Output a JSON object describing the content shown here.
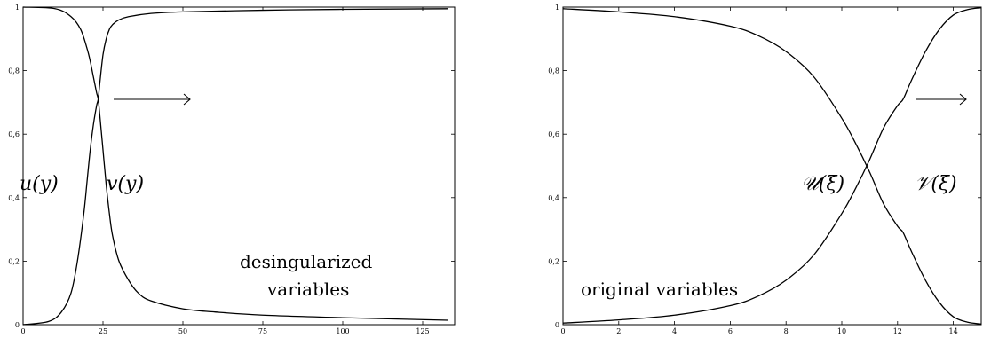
{
  "chart_data": [
    {
      "type": "line",
      "xlim": [
        0,
        135
      ],
      "ylim": [
        0,
        1
      ],
      "xticks": [
        0,
        25,
        50,
        75,
        100,
        125
      ],
      "xtick_labels": [
        "0",
        "25",
        "50",
        "75",
        "100",
        "125"
      ],
      "yticks": [
        0,
        0.2,
        0.4,
        0.6,
        0.8,
        1
      ],
      "ytick_labels": [
        "0",
        "0,2",
        "0,4",
        "0,6",
        "0,8",
        "1"
      ],
      "grid": false,
      "series": [
        {
          "name": "u(y)",
          "x": [
            0,
            10,
            15,
            18,
            20,
            21,
            22,
            23,
            23.5,
            24,
            25,
            26,
            27,
            28,
            30,
            33,
            36,
            40,
            50,
            60,
            75,
            100,
            133
          ],
          "y": [
            1.0,
            0.995,
            0.97,
            0.93,
            0.87,
            0.83,
            0.78,
            0.73,
            0.71,
            0.66,
            0.55,
            0.44,
            0.35,
            0.28,
            0.2,
            0.14,
            0.1,
            0.075,
            0.05,
            0.04,
            0.03,
            0.022,
            0.014
          ]
        },
        {
          "name": "v(y)",
          "x": [
            0,
            8,
            12,
            15,
            17,
            19,
            20,
            21,
            22,
            23,
            23.5,
            24,
            25,
            26,
            27,
            28,
            30,
            33,
            40,
            50,
            75,
            100,
            133
          ],
          "y": [
            0.0,
            0.01,
            0.04,
            0.1,
            0.2,
            0.35,
            0.45,
            0.55,
            0.63,
            0.69,
            0.71,
            0.76,
            0.85,
            0.9,
            0.93,
            0.945,
            0.96,
            0.97,
            0.98,
            0.985,
            0.99,
            0.993,
            0.995
          ]
        }
      ],
      "annotations": {
        "u_label": "u(y)",
        "v_label": "v(y)",
        "text_line1": "desingularized",
        "text_line2": "variables"
      }
    },
    {
      "type": "line",
      "xlim": [
        0,
        15
      ],
      "ylim": [
        0,
        1
      ],
      "xticks": [
        0,
        2,
        4,
        6,
        8,
        10,
        12,
        14
      ],
      "xtick_labels": [
        "0",
        "2",
        "4",
        "6",
        "8",
        "10",
        "12",
        "14"
      ],
      "yticks": [
        0,
        0.2,
        0.4,
        0.6,
        0.8,
        1
      ],
      "ytick_labels": [
        "0",
        "0,2",
        "0,4",
        "0,6",
        "0,8",
        "1"
      ],
      "grid": false,
      "series": [
        {
          "name": "𝒰(ξ)",
          "x": [
            0,
            2,
            4,
            6,
            7,
            8,
            9,
            10,
            10.5,
            11,
            11.5,
            12,
            12.2,
            12.5,
            13,
            13.5,
            14,
            14.5,
            15
          ],
          "y": [
            0.005,
            0.015,
            0.03,
            0.06,
            0.09,
            0.14,
            0.22,
            0.35,
            0.43,
            0.52,
            0.62,
            0.69,
            0.71,
            0.77,
            0.86,
            0.93,
            0.975,
            0.992,
            0.998
          ]
        },
        {
          "name": "𝒱(ξ)",
          "x": [
            0,
            2,
            4,
            6,
            7,
            8,
            9,
            10,
            10.5,
            11,
            11.5,
            12,
            12.2,
            12.5,
            13,
            13.5,
            14,
            14.5,
            15
          ],
          "y": [
            0.995,
            0.985,
            0.97,
            0.94,
            0.91,
            0.86,
            0.78,
            0.65,
            0.57,
            0.48,
            0.38,
            0.31,
            0.29,
            0.23,
            0.14,
            0.07,
            0.025,
            0.008,
            0.002
          ]
        }
      ],
      "annotations": {
        "u_label": "𝒰(ξ)",
        "v_label": "𝒱(ξ)",
        "text_line1": "original variables"
      }
    }
  ]
}
